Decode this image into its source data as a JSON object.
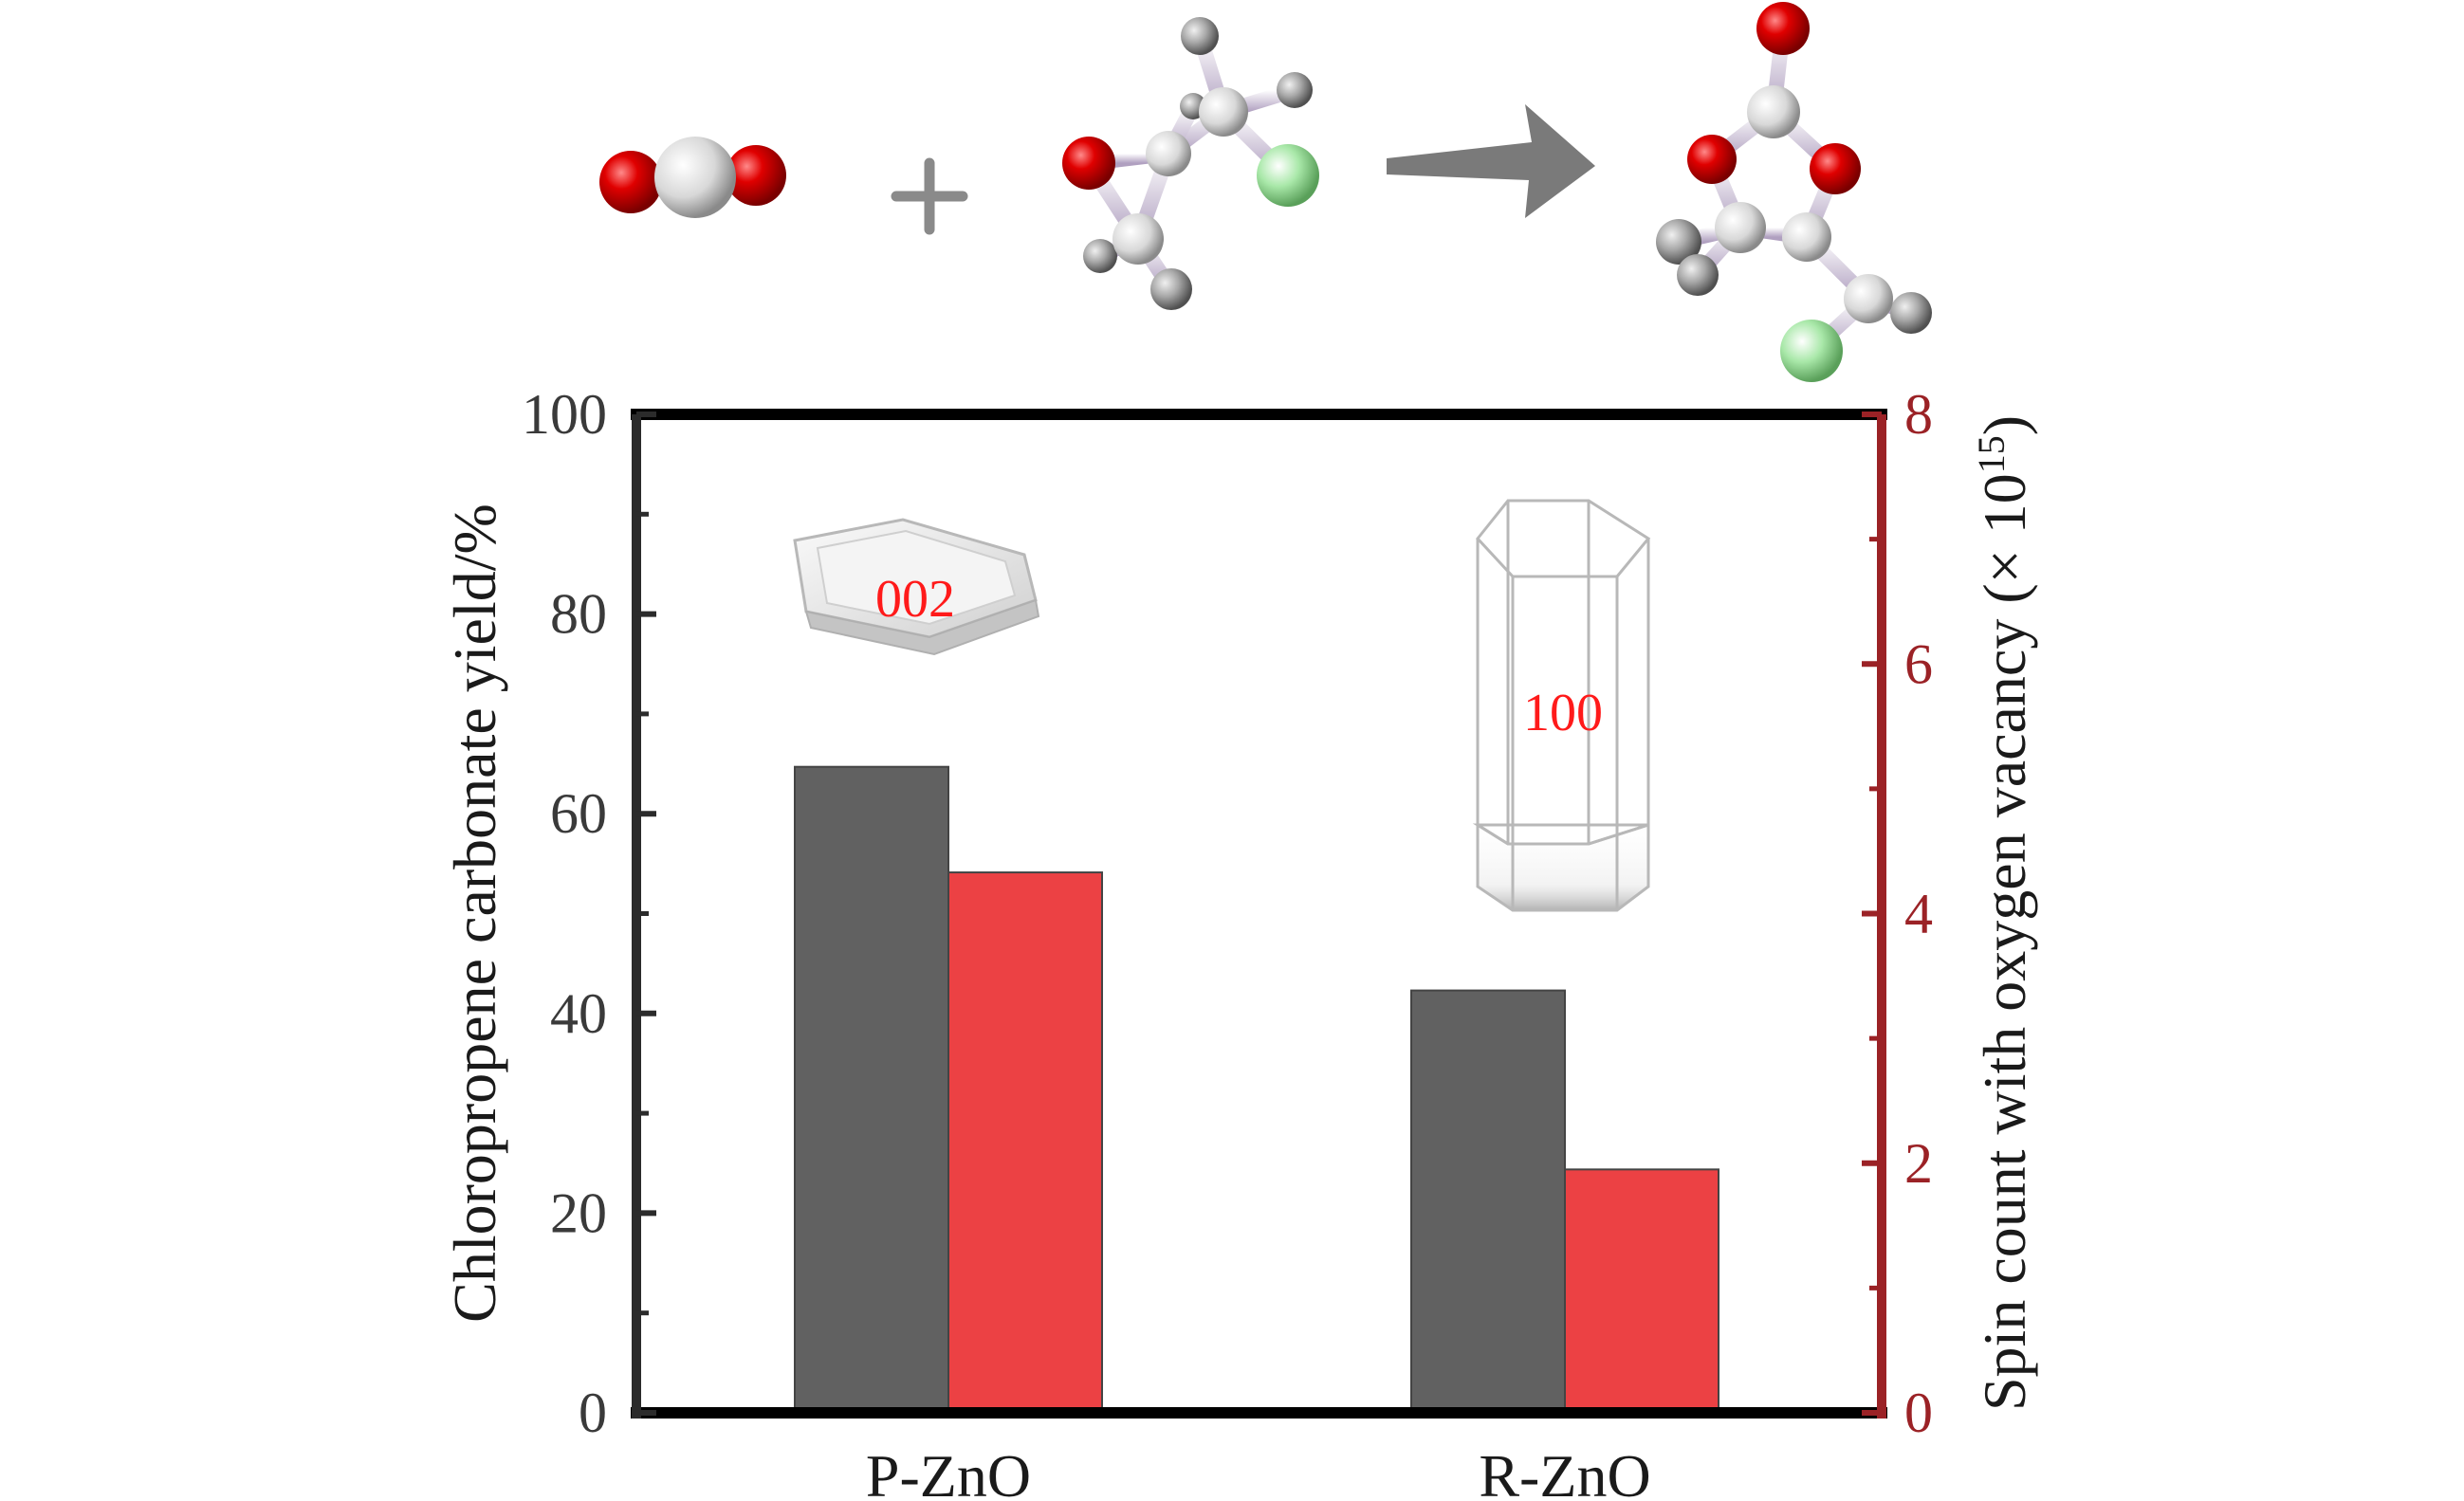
{
  "chart_data": {
    "type": "bar",
    "categories": [
      "P-ZnO",
      "R-ZnO"
    ],
    "series": [
      {
        "axis": "left",
        "color": "#616161",
        "values": [
          64.7,
          42.3
        ]
      },
      {
        "axis": "right",
        "color": "#ec4144",
        "values": [
          4.33,
          1.95
        ]
      }
    ],
    "ylabel": "Chloropropene carbonate yield/%",
    "ylabel_right_main": "Spin count with oxygen vacancy (× 10",
    "ylabel_right_sup": "15",
    "ylabel_right_end": ")",
    "ylim": [
      0,
      100
    ],
    "ylim_right": [
      0,
      8
    ],
    "yticks": [
      "0",
      "20",
      "40",
      "60",
      "80",
      "100"
    ],
    "yticks_right": [
      "0",
      "2",
      "4",
      "6",
      "8"
    ],
    "annotations": [
      "002",
      "100"
    ],
    "left_axis_color": "#2b2b2b",
    "right_axis_color": "#9b2226",
    "grid": false,
    "legend": "none"
  }
}
